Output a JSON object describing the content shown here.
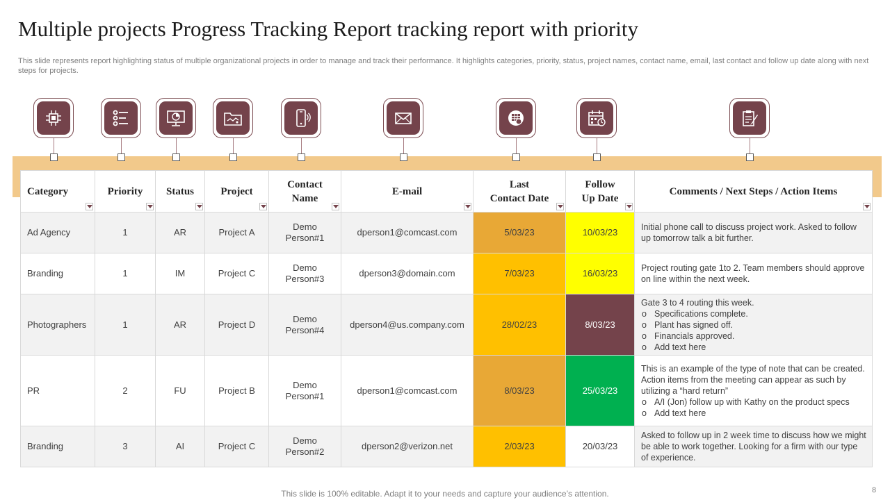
{
  "title": "Multiple projects Progress Tracking Report tracking report with priority",
  "subtitle": "This slide represents report highlighting status of multiple organizational projects in order to manage and track their performance. It highlights categories, priority, status, project names, contact name, email, last contact and follow up date along with next steps for projects.",
  "icons": [
    {
      "name": "chip-icon"
    },
    {
      "name": "list-icon"
    },
    {
      "name": "monitor-chart-icon"
    },
    {
      "name": "folder-icon"
    },
    {
      "name": "phone-icon"
    },
    {
      "name": "envelope-icon"
    },
    {
      "name": "calendar-clock-icon"
    },
    {
      "name": "calendar-icon"
    },
    {
      "name": "clipboard-pen-icon"
    }
  ],
  "table": {
    "headers": {
      "category": "Category",
      "priority": "Priority",
      "status": "Status",
      "project": "Project",
      "contact_line1": "Contact",
      "contact_line2": "Name",
      "email": "E-mail",
      "last_line1": "Last",
      "last_line2": "Contact Date",
      "follow_line1": "Follow",
      "follow_line2": "Up Date",
      "comments": "Comments / Next Steps / Action Items"
    },
    "rows": [
      {
        "category": "Ad Agency",
        "priority": "1",
        "status": "AR",
        "project": "Project A",
        "contact_line1": "Demo",
        "contact_line2": "Person#1",
        "email": "dperson1@comcast.com",
        "last_contact": "5/03/23",
        "follow_up": "10/03/23",
        "comment": "Initial phone call to discuss project work. Asked to follow up tomorrow talk a bit further."
      },
      {
        "category": "Branding",
        "priority": "1",
        "status": "IM",
        "project": "Project C",
        "contact_line1": "Demo",
        "contact_line2": "Person#3",
        "email": "dperson3@domain.com",
        "last_contact": "7/03/23",
        "follow_up": "16/03/23",
        "comment": "Project routing gate 1to 2. Team members should approve on line within the next week."
      },
      {
        "category": "Photographers",
        "priority": "1",
        "status": "AR",
        "project": "Project D",
        "contact_line1": "Demo",
        "contact_line2": "Person#4",
        "email": "dperson4@us.company.com",
        "last_contact": "28/02/23",
        "follow_up": "8/03/23",
        "comment": "Gate 3 to 4 routing this week.",
        "bullets": [
          "Specifications complete.",
          "Plant has signed off.",
          "Financials approved.",
          "Add text here"
        ]
      },
      {
        "category": "PR",
        "priority": "2",
        "status": "FU",
        "project": "Project B",
        "contact_line1": "Demo",
        "contact_line2": "Person#1",
        "email": "dperson1@comcast.com",
        "last_contact": "8/03/23",
        "follow_up": "25/03/23",
        "comment": "This is an example of the type of note that can be created. Action items from the meeting can appear as such by utilizing a “hard return”",
        "bullets": [
          "A/I (Jon) follow up with Kathy on the product specs",
          "Add text here"
        ]
      },
      {
        "category": "Branding",
        "priority": "3",
        "status": "AI",
        "project": "Project C",
        "contact_line1": "Demo",
        "contact_line2": "Person#2",
        "email": "dperson2@verizon.net",
        "last_contact": "2/03/23",
        "follow_up": "20/03/23",
        "comment": "Asked to follow up in 2 week time to discuss how we might be able to work together. Looking for a firm with our type of experience."
      }
    ]
  },
  "colors": {
    "maroon": "#74434b",
    "band": "#f2c98b",
    "orange_dark": "#e8a836",
    "orange": "#ffc000",
    "yellow": "#ffff00",
    "green": "#00b050"
  },
  "footer": "This slide is 100% editable. Adapt it to your needs and capture your audience’s attention.",
  "page_number": "8"
}
